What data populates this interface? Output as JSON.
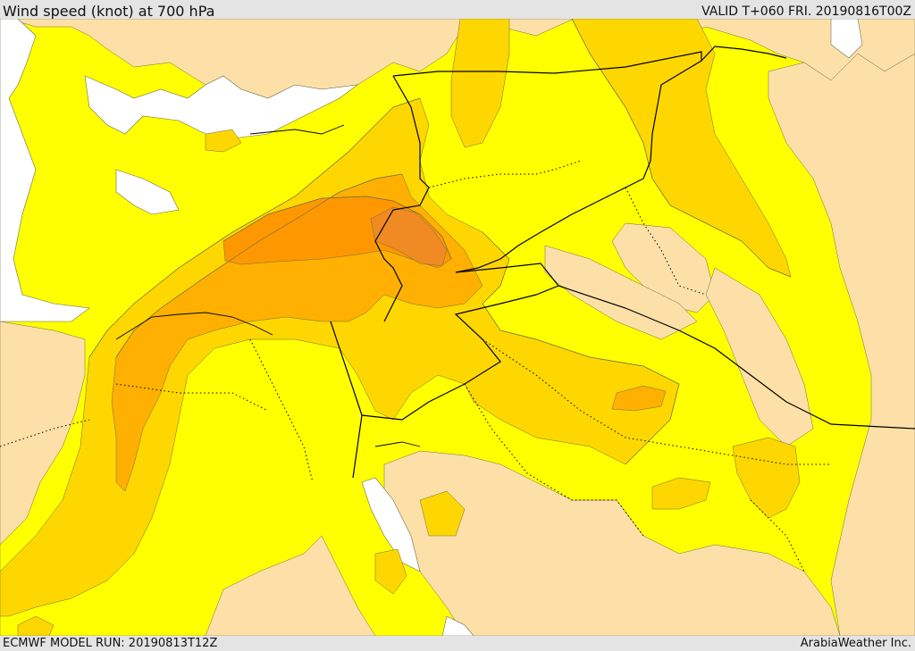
{
  "header": {
    "title": "Wind speed (knot) at 700 hPa",
    "valid": "VALID T+060 FRI. 20190816T00Z"
  },
  "footer": {
    "model_run": "ECMWF MODEL RUN: 20190813T12Z",
    "credit": "ArabiaWeather Inc."
  },
  "map": {
    "colors": {
      "sea": "#ffffff",
      "wind_lt_10": "#fde0a8",
      "wind_10_15": "#ffff00",
      "wind_15_20": "#ffd700",
      "wind_20_25": "#ffb000",
      "wind_25_30": "#ff9800",
      "wind_30_plus": "#f08a22",
      "contour_line": "#6e6e4a",
      "border_line": "#000000"
    }
  }
}
